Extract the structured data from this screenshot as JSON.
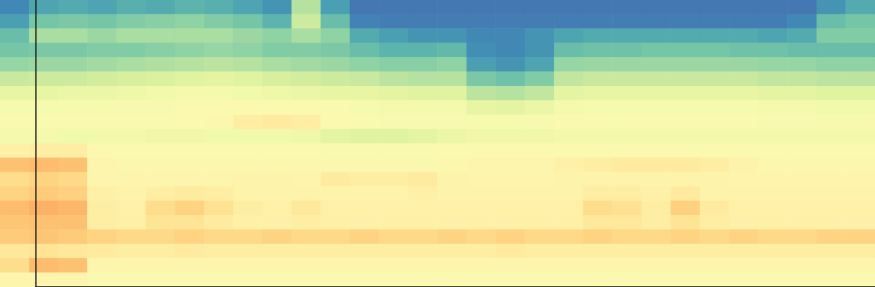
{
  "chart_data": {
    "type": "heatmap",
    "tick_labels": false,
    "zlim": [
      0,
      1
    ],
    "cursor_x": 1.22,
    "cells": [
      [
        0.1,
        0.15,
        0.16,
        0.15,
        0.17,
        0.16,
        0.18,
        0.17,
        0.15,
        0.12,
        0.32,
        0.14,
        0.07,
        0.07,
        0.07,
        0.07,
        0.07,
        0.07,
        0.07,
        0.07,
        0.07,
        0.07,
        0.07,
        0.07,
        0.07,
        0.07,
        0.07,
        0.07,
        0.12,
        0.16
      ],
      [
        0.14,
        0.22,
        0.23,
        0.22,
        0.24,
        0.25,
        0.26,
        0.24,
        0.22,
        0.18,
        0.36,
        0.2,
        0.09,
        0.08,
        0.08,
        0.08,
        0.08,
        0.08,
        0.08,
        0.08,
        0.08,
        0.08,
        0.08,
        0.08,
        0.08,
        0.08,
        0.08,
        0.1,
        0.2,
        0.22
      ],
      [
        0.2,
        0.3,
        0.3,
        0.28,
        0.3,
        0.3,
        0.3,
        0.3,
        0.28,
        0.26,
        0.3,
        0.26,
        0.16,
        0.14,
        0.12,
        0.12,
        0.1,
        0.1,
        0.12,
        0.15,
        0.16,
        0.16,
        0.16,
        0.16,
        0.16,
        0.16,
        0.15,
        0.16,
        0.24,
        0.24
      ],
      [
        0.22,
        0.23,
        0.23,
        0.24,
        0.24,
        0.25,
        0.26,
        0.27,
        0.26,
        0.24,
        0.24,
        0.23,
        0.2,
        0.18,
        0.18,
        0.19,
        0.11,
        0.1,
        0.12,
        0.2,
        0.21,
        0.21,
        0.22,
        0.22,
        0.22,
        0.21,
        0.21,
        0.2,
        0.2,
        0.2
      ],
      [
        0.27,
        0.28,
        0.28,
        0.29,
        0.3,
        0.31,
        0.32,
        0.33,
        0.32,
        0.3,
        0.29,
        0.28,
        0.26,
        0.25,
        0.25,
        0.26,
        0.14,
        0.12,
        0.15,
        0.27,
        0.28,
        0.28,
        0.28,
        0.28,
        0.28,
        0.28,
        0.27,
        0.27,
        0.26,
        0.26
      ],
      [
        0.35,
        0.36,
        0.36,
        0.37,
        0.38,
        0.39,
        0.4,
        0.41,
        0.4,
        0.38,
        0.37,
        0.36,
        0.35,
        0.33,
        0.32,
        0.32,
        0.23,
        0.21,
        0.24,
        0.34,
        0.35,
        0.35,
        0.35,
        0.35,
        0.35,
        0.35,
        0.34,
        0.34,
        0.33,
        0.33
      ],
      [
        0.42,
        0.42,
        0.43,
        0.43,
        0.44,
        0.45,
        0.46,
        0.46,
        0.45,
        0.44,
        0.43,
        0.42,
        0.42,
        0.41,
        0.4,
        0.4,
        0.33,
        0.32,
        0.34,
        0.41,
        0.42,
        0.42,
        0.42,
        0.42,
        0.42,
        0.42,
        0.41,
        0.41,
        0.4,
        0.4
      ],
      [
        0.47,
        0.47,
        0.47,
        0.47,
        0.48,
        0.48,
        0.5,
        0.5,
        0.5,
        0.5,
        0.5,
        0.49,
        0.47,
        0.46,
        0.46,
        0.46,
        0.42,
        0.41,
        0.43,
        0.46,
        0.47,
        0.47,
        0.47,
        0.47,
        0.47,
        0.47,
        0.46,
        0.46,
        0.45,
        0.45
      ],
      [
        0.49,
        0.49,
        0.49,
        0.49,
        0.49,
        0.49,
        0.5,
        0.51,
        0.55,
        0.56,
        0.55,
        0.5,
        0.49,
        0.48,
        0.48,
        0.48,
        0.47,
        0.47,
        0.48,
        0.49,
        0.49,
        0.49,
        0.49,
        0.49,
        0.49,
        0.49,
        0.48,
        0.48,
        0.48,
        0.48
      ],
      [
        0.46,
        0.46,
        0.45,
        0.45,
        0.45,
        0.44,
        0.44,
        0.45,
        0.45,
        0.45,
        0.44,
        0.41,
        0.4,
        0.4,
        0.41,
        0.43,
        0.44,
        0.44,
        0.44,
        0.45,
        0.45,
        0.45,
        0.45,
        0.45,
        0.45,
        0.45,
        0.45,
        0.45,
        0.45,
        0.45
      ],
      [
        0.54,
        0.55,
        0.55,
        0.5,
        0.5,
        0.5,
        0.5,
        0.5,
        0.5,
        0.5,
        0.5,
        0.49,
        0.49,
        0.49,
        0.49,
        0.5,
        0.5,
        0.5,
        0.5,
        0.5,
        0.5,
        0.5,
        0.5,
        0.5,
        0.5,
        0.5,
        0.5,
        0.5,
        0.5,
        0.5
      ],
      [
        0.66,
        0.67,
        0.66,
        0.52,
        0.51,
        0.51,
        0.51,
        0.51,
        0.51,
        0.51,
        0.51,
        0.51,
        0.51,
        0.51,
        0.51,
        0.51,
        0.52,
        0.52,
        0.52,
        0.54,
        0.55,
        0.56,
        0.56,
        0.56,
        0.55,
        0.53,
        0.51,
        0.51,
        0.51,
        0.51
      ],
      [
        0.6,
        0.62,
        0.61,
        0.52,
        0.52,
        0.52,
        0.52,
        0.52,
        0.53,
        0.53,
        0.52,
        0.56,
        0.55,
        0.55,
        0.56,
        0.53,
        0.52,
        0.52,
        0.52,
        0.53,
        0.53,
        0.53,
        0.53,
        0.53,
        0.53,
        0.52,
        0.52,
        0.52,
        0.52,
        0.52
      ],
      [
        0.62,
        0.64,
        0.63,
        0.54,
        0.53,
        0.55,
        0.56,
        0.55,
        0.53,
        0.53,
        0.53,
        0.53,
        0.53,
        0.53,
        0.54,
        0.53,
        0.53,
        0.53,
        0.53,
        0.53,
        0.55,
        0.55,
        0.54,
        0.56,
        0.53,
        0.53,
        0.53,
        0.53,
        0.53,
        0.53
      ],
      [
        0.67,
        0.69,
        0.68,
        0.55,
        0.54,
        0.6,
        0.62,
        0.59,
        0.55,
        0.54,
        0.57,
        0.54,
        0.54,
        0.54,
        0.54,
        0.54,
        0.54,
        0.54,
        0.54,
        0.54,
        0.6,
        0.59,
        0.55,
        0.63,
        0.56,
        0.54,
        0.54,
        0.54,
        0.54,
        0.54
      ],
      [
        0.65,
        0.66,
        0.66,
        0.55,
        0.54,
        0.58,
        0.58,
        0.56,
        0.54,
        0.54,
        0.55,
        0.54,
        0.54,
        0.54,
        0.54,
        0.54,
        0.54,
        0.54,
        0.54,
        0.54,
        0.57,
        0.57,
        0.55,
        0.58,
        0.55,
        0.54,
        0.54,
        0.54,
        0.54,
        0.54
      ],
      [
        0.64,
        0.65,
        0.64,
        0.62,
        0.61,
        0.61,
        0.62,
        0.61,
        0.61,
        0.62,
        0.61,
        0.61,
        0.62,
        0.61,
        0.61,
        0.62,
        0.61,
        0.62,
        0.61,
        0.61,
        0.62,
        0.61,
        0.61,
        0.62,
        0.61,
        0.62,
        0.61,
        0.61,
        0.62,
        0.62
      ],
      [
        0.57,
        0.58,
        0.57,
        0.56,
        0.55,
        0.55,
        0.56,
        0.55,
        0.55,
        0.55,
        0.55,
        0.55,
        0.55,
        0.55,
        0.55,
        0.55,
        0.55,
        0.56,
        0.55,
        0.55,
        0.55,
        0.55,
        0.55,
        0.55,
        0.55,
        0.55,
        0.55,
        0.55,
        0.55,
        0.55
      ],
      [
        0.6,
        0.67,
        0.66,
        0.52,
        0.52,
        0.52,
        0.52,
        0.52,
        0.52,
        0.52,
        0.52,
        0.52,
        0.52,
        0.52,
        0.52,
        0.52,
        0.52,
        0.52,
        0.52,
        0.52,
        0.52,
        0.52,
        0.52,
        0.52,
        0.52,
        0.52,
        0.52,
        0.52,
        0.52,
        0.52
      ],
      [
        0.52,
        0.52,
        0.52,
        0.5,
        0.5,
        0.5,
        0.5,
        0.5,
        0.5,
        0.5,
        0.5,
        0.5,
        0.5,
        0.5,
        0.5,
        0.5,
        0.5,
        0.5,
        0.5,
        0.5,
        0.5,
        0.5,
        0.5,
        0.5,
        0.5,
        0.5,
        0.5,
        0.5,
        0.5,
        0.5
      ]
    ]
  }
}
